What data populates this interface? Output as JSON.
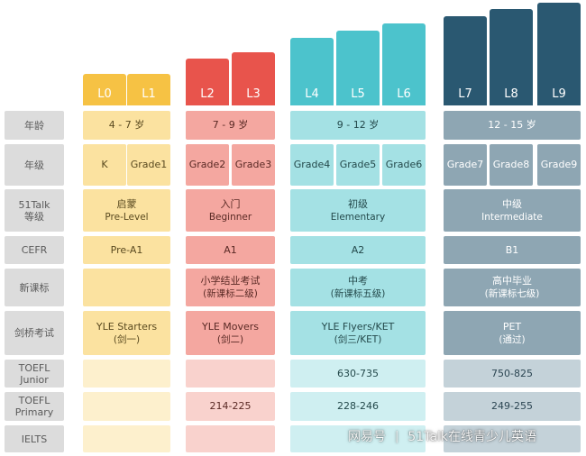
{
  "colors": {
    "label_bg": "#dcdcdc",
    "label_text": "#5b5b5b",
    "groups": [
      {
        "bar": "#f6c244",
        "light": "#fbe2a0",
        "pale": "#fdf0cd",
        "text": "#5a4a20"
      },
      {
        "bar": "#e8544c",
        "light": "#f4a7a0",
        "pale": "#f9d2cd",
        "text": "#5a2a25"
      },
      {
        "bar": "#4cc3cc",
        "light": "#a4e1e4",
        "pale": "#cfeff1",
        "text": "#24494b"
      },
      {
        "bar": "#2a5871",
        "light": "#8ea6b3",
        "pale": "#c4d2d9",
        "text": "#ffffff"
      }
    ]
  },
  "levels": [
    {
      "label": "L0",
      "group": 0,
      "height_rank": 1
    },
    {
      "label": "L1",
      "group": 0,
      "height_rank": 1
    },
    {
      "label": "L2",
      "group": 1,
      "height_rank": 2
    },
    {
      "label": "L3",
      "group": 1,
      "height_rank": 3
    },
    {
      "label": "L4",
      "group": 2,
      "height_rank": 4
    },
    {
      "label": "L5",
      "group": 2,
      "height_rank": 5
    },
    {
      "label": "L6",
      "group": 2,
      "height_rank": 6
    },
    {
      "label": "L7",
      "group": 3,
      "height_rank": 7
    },
    {
      "label": "L8",
      "group": 3,
      "height_rank": 8
    },
    {
      "label": "L9",
      "group": 3,
      "height_rank": 9
    }
  ],
  "rows": [
    {
      "name": "age",
      "label": [
        "年龄"
      ],
      "shade": "light",
      "cells": [
        {
          "span": [
            0,
            1
          ],
          "text": [
            "4 - 7 岁"
          ]
        },
        {
          "span": [
            2,
            3
          ],
          "text": [
            "7 - 9 岁"
          ]
        },
        {
          "span": [
            4,
            6
          ],
          "text": [
            "9 - 12 岁"
          ]
        },
        {
          "span": [
            7,
            9
          ],
          "text": [
            "12 - 15 岁"
          ]
        }
      ]
    },
    {
      "name": "grade",
      "label": [
        "年级"
      ],
      "shade": "light",
      "cells": [
        {
          "span": [
            0,
            0
          ],
          "text": [
            "K"
          ]
        },
        {
          "span": [
            1,
            1
          ],
          "text": [
            "Grade1"
          ]
        },
        {
          "span": [
            2,
            2
          ],
          "text": [
            "Grade2"
          ]
        },
        {
          "span": [
            3,
            3
          ],
          "text": [
            "Grade3"
          ]
        },
        {
          "span": [
            4,
            4
          ],
          "text": [
            "Grade4"
          ]
        },
        {
          "span": [
            5,
            5
          ],
          "text": [
            "Grade5"
          ]
        },
        {
          "span": [
            6,
            6
          ],
          "text": [
            "Grade6"
          ]
        },
        {
          "span": [
            7,
            7
          ],
          "text": [
            "Grade7"
          ]
        },
        {
          "span": [
            8,
            8
          ],
          "text": [
            "Grade8"
          ]
        },
        {
          "span": [
            9,
            9
          ],
          "text": [
            "Grade9"
          ]
        }
      ]
    },
    {
      "name": "level",
      "label": [
        "51Talk",
        "等级"
      ],
      "shade": "light",
      "cells": [
        {
          "span": [
            0,
            1
          ],
          "text": [
            "启蒙",
            "Pre-Level"
          ]
        },
        {
          "span": [
            2,
            3
          ],
          "text": [
            "入门",
            "Beginner"
          ]
        },
        {
          "span": [
            4,
            6
          ],
          "text": [
            "初级",
            "Elementary"
          ]
        },
        {
          "span": [
            7,
            9
          ],
          "text": [
            "中级",
            "Intermediate"
          ]
        }
      ]
    },
    {
      "name": "cefr",
      "label": [
        "CEFR"
      ],
      "shade": "light",
      "cells": [
        {
          "span": [
            0,
            1
          ],
          "text": [
            "Pre-A1"
          ]
        },
        {
          "span": [
            2,
            3
          ],
          "text": [
            "A1"
          ]
        },
        {
          "span": [
            4,
            6
          ],
          "text": [
            "A2"
          ]
        },
        {
          "span": [
            7,
            9
          ],
          "text": [
            "B1"
          ]
        }
      ]
    },
    {
      "name": "curriculum",
      "label": [
        "新课标"
      ],
      "shade": "light",
      "cells": [
        {
          "span": [
            0,
            1
          ],
          "text": []
        },
        {
          "span": [
            2,
            3
          ],
          "text": [
            "小学结业考试",
            "(新课标二级)"
          ]
        },
        {
          "span": [
            4,
            6
          ],
          "text": [
            "中考",
            "(新课标五级)"
          ]
        },
        {
          "span": [
            7,
            9
          ],
          "text": [
            "高中毕业",
            "(新课标七级)"
          ]
        }
      ]
    },
    {
      "name": "cambridge",
      "label": [
        "剑桥考试"
      ],
      "shade": "light",
      "cells": [
        {
          "span": [
            0,
            1
          ],
          "text": [
            "YLE Starters",
            "(剑一)"
          ]
        },
        {
          "span": [
            2,
            3
          ],
          "text": [
            "YLE Movers",
            "(剑二)"
          ]
        },
        {
          "span": [
            4,
            6
          ],
          "text": [
            "YLE Flyers/KET",
            "(剑三/KET)"
          ]
        },
        {
          "span": [
            7,
            9
          ],
          "text": [
            "PET",
            "(通过)"
          ]
        }
      ]
    },
    {
      "name": "toefl-junior",
      "label": [
        "TOEFL",
        "Junior"
      ],
      "shade": "pale",
      "cells": [
        {
          "span": [
            0,
            1
          ],
          "text": []
        },
        {
          "span": [
            2,
            3
          ],
          "text": []
        },
        {
          "span": [
            4,
            6
          ],
          "text": [
            "630-735"
          ]
        },
        {
          "span": [
            7,
            9
          ],
          "text": [
            "750-825"
          ]
        }
      ]
    },
    {
      "name": "toefl-primary",
      "label": [
        "TOEFL",
        "Primary"
      ],
      "shade": "pale",
      "cells": [
        {
          "span": [
            0,
            1
          ],
          "text": []
        },
        {
          "span": [
            2,
            3
          ],
          "text": [
            "214-225"
          ]
        },
        {
          "span": [
            4,
            6
          ],
          "text": [
            "228-246"
          ]
        },
        {
          "span": [
            7,
            9
          ],
          "text": [
            "249-255"
          ]
        }
      ]
    },
    {
      "name": "ielts",
      "label": [
        "IELTS"
      ],
      "shade": "pale",
      "cells": [
        {
          "span": [
            0,
            1
          ],
          "text": []
        },
        {
          "span": [
            2,
            3
          ],
          "text": []
        },
        {
          "span": [
            4,
            6
          ],
          "text": []
        },
        {
          "span": [
            7,
            9
          ],
          "text": []
        }
      ]
    }
  ],
  "watermark": {
    "brand": "网易号",
    "separator": "|",
    "account": "51Talk在线青少儿英语"
  }
}
